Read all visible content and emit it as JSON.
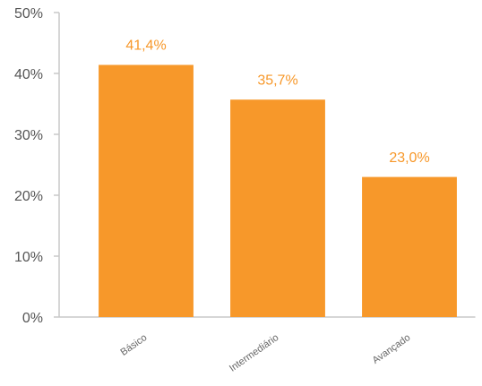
{
  "chart_data": {
    "type": "bar",
    "categories": [
      "Básico",
      "Intermediário",
      "Avançado"
    ],
    "values": [
      41.4,
      35.7,
      23.0
    ],
    "value_labels": [
      "41,4%",
      "35,7%",
      "23,0%"
    ],
    "color": "#f7982a",
    "ylim": [
      0,
      50
    ],
    "yticks": [
      {
        "value": 0,
        "label": "0%"
      },
      {
        "value": 10,
        "label": "10%"
      },
      {
        "value": 20,
        "label": "20%"
      },
      {
        "value": 30,
        "label": "30%"
      },
      {
        "value": 40,
        "label": "40%"
      },
      {
        "value": 50,
        "label": "50%"
      }
    ],
    "grid": false
  }
}
